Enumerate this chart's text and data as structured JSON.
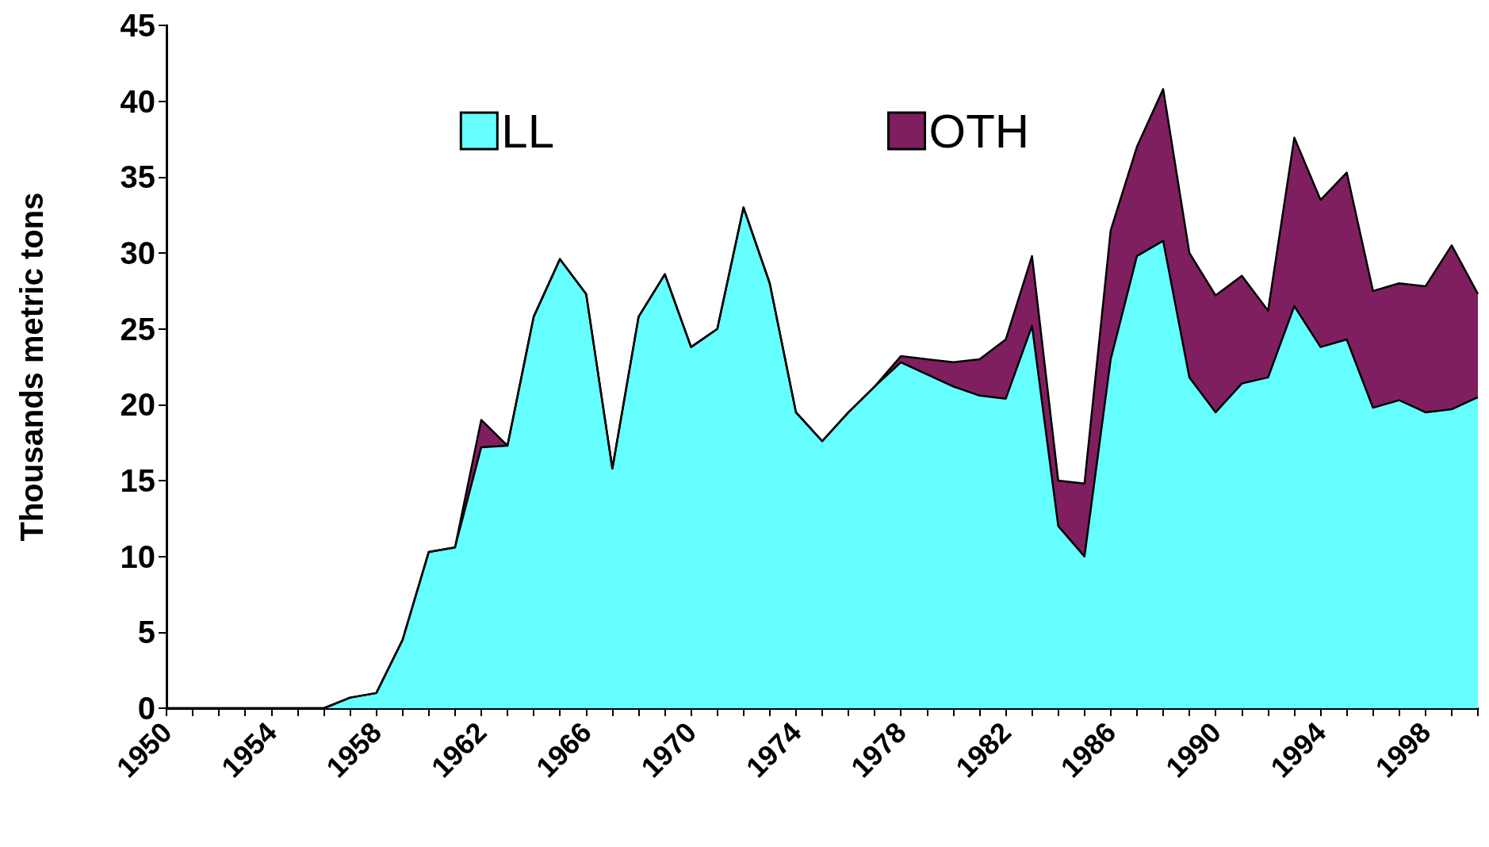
{
  "chart_data": {
    "type": "area",
    "stacked": true,
    "ylabel": "Thousands metric tons",
    "categories": [
      "1950",
      null,
      null,
      null,
      "1954",
      null,
      null,
      null,
      "1958",
      null,
      null,
      null,
      "1962",
      null,
      null,
      null,
      "1966",
      null,
      null,
      null,
      "1970",
      null,
      null,
      null,
      "1974",
      null,
      null,
      null,
      "1978",
      null,
      null,
      null,
      "1982",
      null,
      null,
      null,
      "1986",
      null,
      null,
      null,
      "1990",
      null,
      null,
      null,
      "1994",
      null,
      null,
      null,
      "1998",
      null,
      null
    ],
    "series": [
      {
        "name": "LL",
        "color": "#66ffff",
        "values": [
          0,
          0,
          0,
          0,
          0,
          0,
          0,
          0.7,
          1.0,
          4.5,
          10.3,
          10.6,
          17.2,
          17.3,
          25.8,
          29.6,
          27.3,
          15.8,
          25.8,
          28.6,
          23.8,
          25,
          33,
          28,
          19.5,
          17.6,
          19.5,
          21.2,
          22.8,
          22,
          21.2,
          20.6,
          20.4,
          25.2,
          12,
          10,
          23,
          29.8,
          30.8,
          21.8,
          19.5,
          21.4,
          21.8,
          26.5,
          23.8,
          24.3,
          19.8,
          20.3,
          19.5,
          19.7,
          20.5
        ]
      },
      {
        "name": "OTH",
        "color": "#7f1f5f",
        "values": [
          0,
          0,
          0,
          0,
          0,
          0,
          0,
          0,
          0,
          0,
          0,
          0,
          1.8,
          0,
          0,
          0,
          0,
          0,
          0,
          0,
          0,
          0,
          0,
          0,
          0,
          0,
          0,
          0,
          0.4,
          1,
          1.6,
          2.4,
          3.9,
          4.6,
          3,
          4.8,
          8.5,
          7.2,
          10,
          8.2,
          7.7,
          7.1,
          4.4,
          11.1,
          9.7,
          11,
          7.7,
          7.7,
          8.3,
          10.8,
          6.8
        ]
      }
    ],
    "ylim": [
      0,
      45
    ],
    "yticks": [
      0,
      5,
      10,
      15,
      20,
      25,
      30,
      35,
      40,
      45
    ],
    "grid": false,
    "legend": "top",
    "marker": "none",
    "line_style": "solid"
  }
}
